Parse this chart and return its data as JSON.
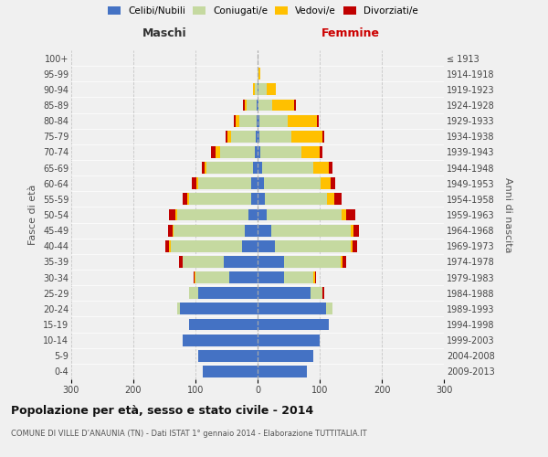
{
  "age_groups": [
    "0-4",
    "5-9",
    "10-14",
    "15-19",
    "20-24",
    "25-29",
    "30-34",
    "35-39",
    "40-44",
    "45-49",
    "50-54",
    "55-59",
    "60-64",
    "65-69",
    "70-74",
    "75-79",
    "80-84",
    "85-89",
    "90-94",
    "95-99",
    "100+"
  ],
  "birth_years": [
    "2009-2013",
    "2004-2008",
    "1999-2003",
    "1994-1998",
    "1989-1993",
    "1984-1988",
    "1979-1983",
    "1974-1978",
    "1969-1973",
    "1964-1968",
    "1959-1963",
    "1954-1958",
    "1949-1953",
    "1944-1948",
    "1939-1943",
    "1934-1938",
    "1929-1933",
    "1924-1928",
    "1919-1923",
    "1914-1918",
    "≤ 1913"
  ],
  "male_celibi": [
    88,
    95,
    120,
    110,
    125,
    95,
    45,
    55,
    25,
    20,
    15,
    10,
    10,
    7,
    5,
    3,
    2,
    2,
    0,
    0,
    0
  ],
  "male_coniugati": [
    0,
    0,
    0,
    0,
    5,
    15,
    55,
    65,
    115,
    115,
    115,
    100,
    85,
    75,
    55,
    40,
    28,
    15,
    5,
    0,
    0
  ],
  "male_vedovi": [
    0,
    0,
    0,
    0,
    0,
    1,
    1,
    1,
    2,
    2,
    2,
    3,
    3,
    3,
    8,
    5,
    5,
    3,
    2,
    0,
    0
  ],
  "male_divorziati": [
    0,
    0,
    0,
    0,
    0,
    0,
    2,
    5,
    7,
    7,
    10,
    8,
    8,
    5,
    7,
    3,
    3,
    3,
    0,
    0,
    0
  ],
  "fem_nubili": [
    80,
    90,
    100,
    115,
    110,
    85,
    42,
    42,
    28,
    22,
    15,
    12,
    10,
    8,
    5,
    3,
    3,
    2,
    2,
    0,
    0
  ],
  "fem_coniugate": [
    0,
    0,
    0,
    0,
    10,
    20,
    48,
    92,
    122,
    128,
    120,
    100,
    92,
    82,
    65,
    52,
    45,
    22,
    12,
    2,
    0
  ],
  "fem_vedove": [
    0,
    0,
    0,
    0,
    0,
    0,
    2,
    3,
    3,
    5,
    8,
    12,
    15,
    25,
    30,
    50,
    48,
    35,
    15,
    2,
    0
  ],
  "fem_divorziate": [
    0,
    0,
    0,
    0,
    0,
    2,
    2,
    5,
    7,
    8,
    15,
    12,
    8,
    5,
    5,
    2,
    2,
    3,
    0,
    0,
    0
  ],
  "colors": {
    "celibi": "#4472c4",
    "coniugati": "#c5d9a0",
    "vedovi": "#ffc000",
    "divorziati": "#c00000"
  },
  "xlim": 300,
  "title": "Popolazione per età, sesso e stato civile - 2014",
  "subtitle": "COMUNE DI VILLE D’ANAUNIA (TN) - Dati ISTAT 1° gennaio 2014 - Elaborazione TUTTITALIA.IT",
  "ylabel_left": "Fasce di età",
  "ylabel_right": "Anni di nascita",
  "xlabel_left": "Maschi",
  "xlabel_right": "Femmine",
  "legend_labels": [
    "Celibi/Nubili",
    "Coniugati/e",
    "Vedovi/e",
    "Divorziati/e"
  ],
  "bg_color": "#f0f0f0",
  "bar_height": 0.75
}
